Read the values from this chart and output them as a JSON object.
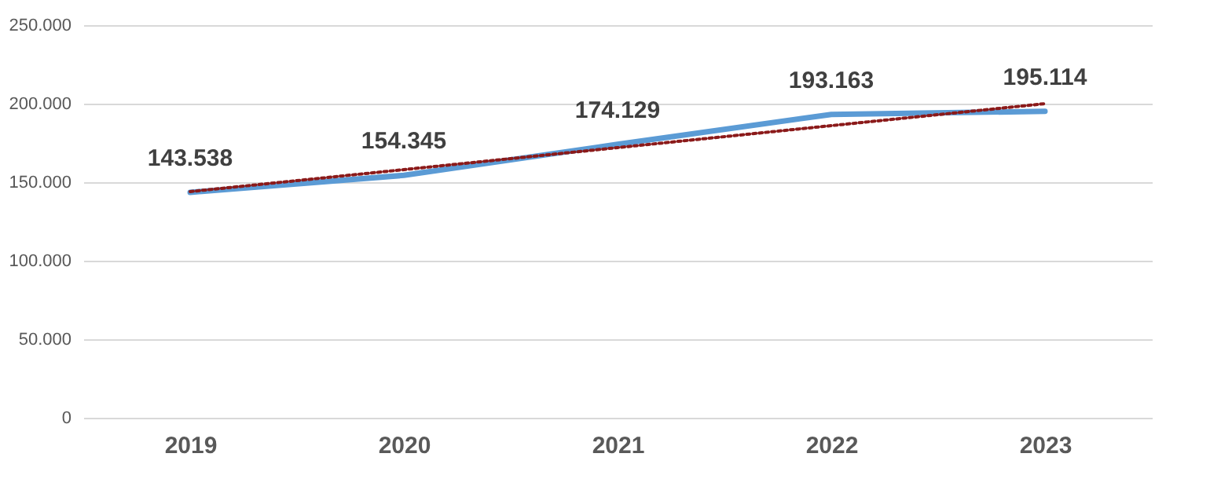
{
  "chart_data": {
    "type": "line",
    "categories": [
      "2019",
      "2020",
      "2021",
      "2022",
      "2023"
    ],
    "series": [
      {
        "color": "#5b9bd5",
        "values": [
          143538,
          154345,
          174129,
          193163,
          195114
        ],
        "value_labels": [
          "143.538",
          "154.345",
          "174.129",
          "193.163",
          "195.114"
        ],
        "line_style": "solid"
      },
      {
        "color": "#8b1a1a",
        "values": [
          144000,
          158000,
          172000,
          186000,
          200000
        ],
        "line_style": "dotted"
      }
    ],
    "ylim": [
      0,
      250000
    ],
    "yticks": [
      {
        "value": 0,
        "label": "0"
      },
      {
        "value": 50000,
        "label": "50.000"
      },
      {
        "value": 100000,
        "label": "100.000"
      },
      {
        "value": 150000,
        "label": "150.000"
      },
      {
        "value": 200000,
        "label": "200.000"
      },
      {
        "value": 250000,
        "label": "250.000"
      }
    ],
    "grid": "y",
    "marker": "none"
  }
}
